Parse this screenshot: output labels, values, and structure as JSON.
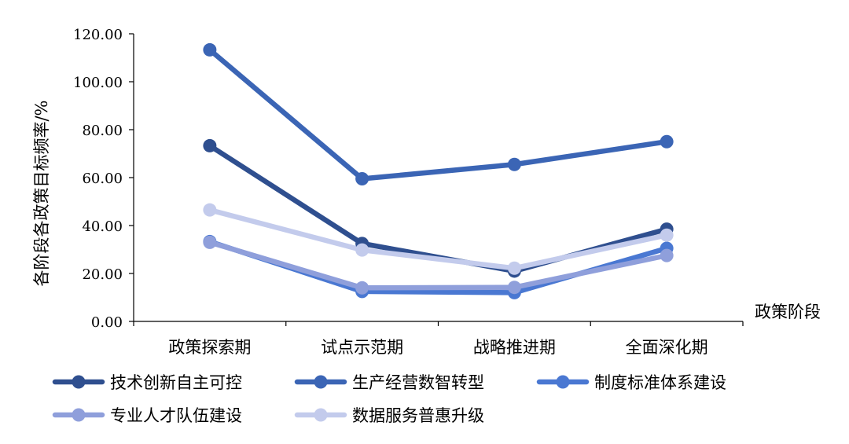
{
  "chart_data": {
    "type": "line",
    "title": "",
    "xlabel": "政策阶段",
    "ylabel": "各阶段各政策目标频率/%",
    "ylim": [
      0,
      120
    ],
    "yticks": [
      "0.00",
      "20.00",
      "40.00",
      "60.00",
      "80.00",
      "100.00",
      "120.00"
    ],
    "categories": [
      "政策探索期",
      "试点示范期",
      "战略推进期",
      "全面深化期"
    ],
    "legend_position": "bottom",
    "grid": false,
    "series": [
      {
        "name": "技术创新自主可控",
        "color": "#2f4f8f",
        "values": [
          73.3,
          32.5,
          21.0,
          38.5
        ]
      },
      {
        "name": "生产经营数智转型",
        "color": "#3b65b5",
        "values": [
          113.3,
          59.5,
          65.5,
          75.0
        ]
      },
      {
        "name": "制度标准体系建设",
        "color": "#4a78d2",
        "values": [
          33.3,
          12.5,
          12.0,
          30.5
        ]
      },
      {
        "name": "专业人才队伍建设",
        "color": "#8f9fdb",
        "values": [
          33.0,
          14.0,
          14.2,
          27.5
        ]
      },
      {
        "name": "数据服务普惠升级",
        "color": "#c3cbec",
        "values": [
          46.5,
          29.8,
          22.2,
          36.0
        ]
      }
    ]
  }
}
